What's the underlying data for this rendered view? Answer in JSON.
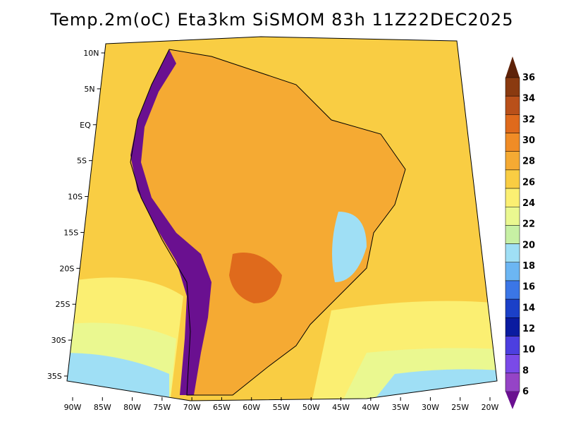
{
  "title": "Temp.2m(oC) Eta3km SiSMOM 83h 11Z22DEC2025",
  "map": {
    "lon_labels": [
      "90W",
      "85W",
      "80W",
      "75W",
      "70W",
      "65W",
      "60W",
      "55W",
      "50W",
      "45W",
      "40W",
      "35W",
      "30W",
      "25W",
      "20W"
    ],
    "lat_labels": [
      "10N",
      "5N",
      "EQ",
      "5S",
      "10S",
      "15S",
      "20S",
      "25S",
      "30S",
      "35S"
    ]
  },
  "colorbar": {
    "labels": [
      "36",
      "34",
      "32",
      "30",
      "28",
      "26",
      "24",
      "22",
      "20",
      "18",
      "16",
      "14",
      "12",
      "10",
      "8",
      "6"
    ],
    "colors": [
      "#5e2208",
      "#8a3a10",
      "#b9501a",
      "#df6a1c",
      "#f08c26",
      "#f5aa33",
      "#f9cd43",
      "#fbef72",
      "#eaf890",
      "#c7f0a4",
      "#9fdff5",
      "#6cb6f3",
      "#3b76e6",
      "#1b40c8",
      "#0a1ba0",
      "#4c3fe0",
      "#7a4ae8",
      "#9544c6",
      "#6a1090"
    ]
  },
  "palette": {
    "sea_warm": "#f9cd43",
    "sea_mid": "#fbef72",
    "sea_cool": "#eaf890",
    "sea_cold": "#9fdff5",
    "land_warm": "#f5aa33",
    "land_hot": "#df6a1c",
    "andes": "#6a1090",
    "coast_line": "#000000"
  }
}
